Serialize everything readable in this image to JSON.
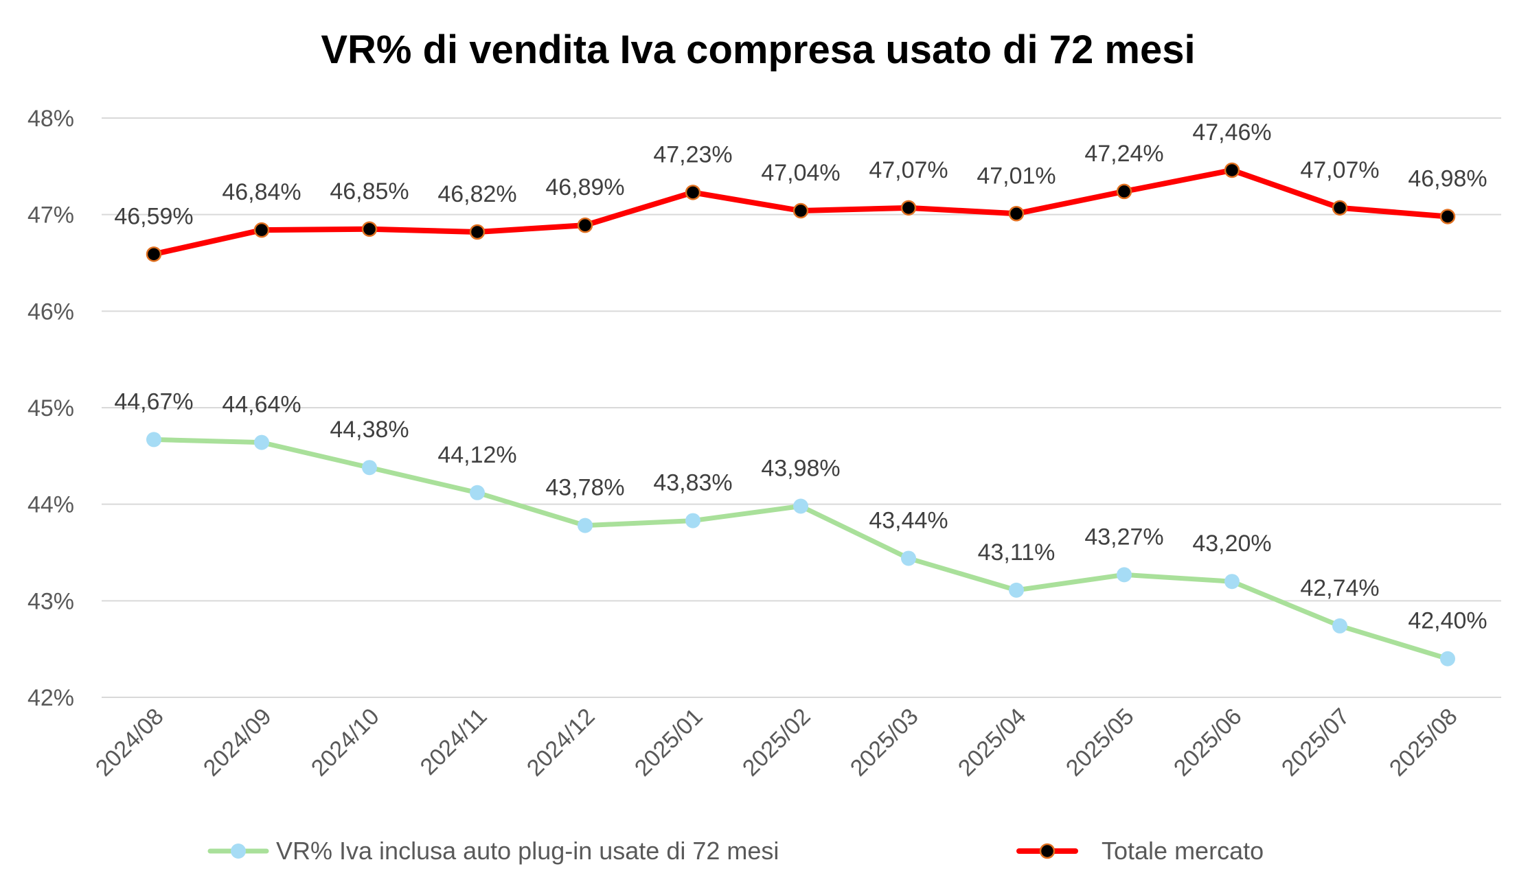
{
  "chart_data": {
    "type": "line",
    "title": "VR% di vendita Iva compresa usato di 72 mesi",
    "xlabel": "",
    "ylabel": "",
    "categories": [
      "2024/08",
      "2024/09",
      "2024/10",
      "2024/11",
      "2024/12",
      "2025/01",
      "2025/02",
      "2025/03",
      "2025/04",
      "2025/05",
      "2025/06",
      "2025/07",
      "2025/08"
    ],
    "ylim": [
      42,
      48
    ],
    "yticks": [
      {
        "value": 42,
        "label": "42%"
      },
      {
        "value": 43,
        "label": "43%"
      },
      {
        "value": 44,
        "label": "44%"
      },
      {
        "value": 45,
        "label": "45%"
      },
      {
        "value": 46,
        "label": "46%"
      },
      {
        "value": 47,
        "label": "47%"
      },
      {
        "value": 48,
        "label": "48%"
      }
    ],
    "grid": true,
    "legend": "bottom",
    "series": [
      {
        "name": "VR% Iva inclusa auto plug-in usate di 72 mesi",
        "line_color": "#a9e09a",
        "marker_color": "#a6dcf5",
        "values": [
          44.67,
          44.64,
          44.38,
          44.12,
          43.78,
          43.83,
          43.98,
          43.44,
          43.11,
          43.27,
          43.2,
          42.74,
          42.4
        ],
        "labels": [
          "44,67%",
          "44,64%",
          "44,38%",
          "44,12%",
          "43,78%",
          "43,83%",
          "43,98%",
          "43,44%",
          "43,11%",
          "43,27%",
          "43,20%",
          "42,74%",
          "42,40%"
        ]
      },
      {
        "name": "Totale mercato",
        "line_color": "#ff0000",
        "marker_color": "#000000",
        "marker_edge": "#e07020",
        "values": [
          46.59,
          46.84,
          46.85,
          46.82,
          46.89,
          47.23,
          47.04,
          47.07,
          47.01,
          47.24,
          47.46,
          47.07,
          46.98
        ],
        "labels": [
          "46,59%",
          "46,84%",
          "46,85%",
          "46,82%",
          "46,89%",
          "47,23%",
          "47,04%",
          "47,07%",
          "47,01%",
          "47,24%",
          "47,46%",
          "47,07%",
          "46,98%"
        ]
      }
    ]
  }
}
